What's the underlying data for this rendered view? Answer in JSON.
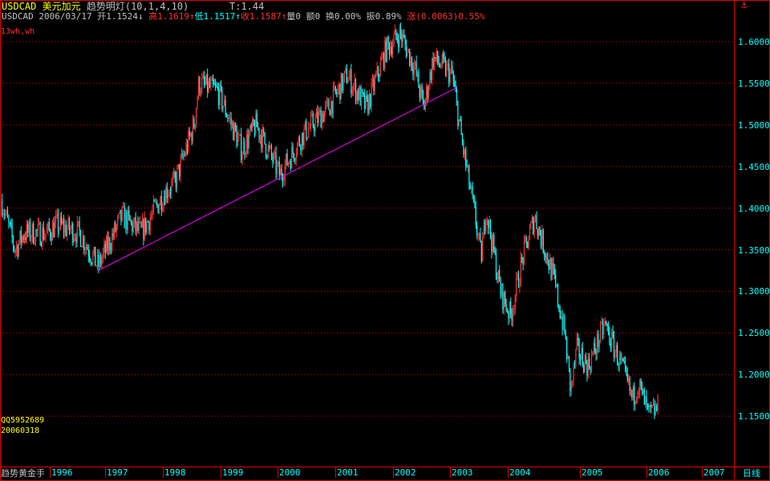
{
  "header": {
    "symbol": "USDCAD",
    "name": "美元加元",
    "indicator": "趋势明灯(10,1,4,10)",
    "t_value": "T:1.44",
    "quote_symbol": "USDCAD",
    "date": "2006/03/17",
    "open_label": "开",
    "open": "1.1524",
    "open_arrow": "↓",
    "high_label": "高",
    "high": "1.1619",
    "high_arrow": "↑",
    "low_label": "低",
    "low": "1.1517",
    "low_arrow": "↑",
    "close_label": "收",
    "close": "1.1587",
    "close_arrow": "↑",
    "volume": "量0",
    "amount": "额0",
    "turnover": "换0.00%",
    "amplitude": "振0.89%",
    "change_label": "涨",
    "change": "(0.0063)0.55%",
    "sub_label": "13wh,wh"
  },
  "watermark": {
    "qq": "QQ5952689",
    "date": "20060318"
  },
  "footer": {
    "brand": "趋势黄金手",
    "period": "日线",
    "corner_icon": "anchor-icon"
  },
  "colors": {
    "up": "#ff3030",
    "down": "#00ffff",
    "grid": "#e00000",
    "trendline": "#ff00ff",
    "label_yellow": "#ffff00"
  },
  "chart_data": {
    "type": "candlestick",
    "y_ticks": [
      "1.6000",
      "1.5500",
      "1.5000",
      "1.4500",
      "1.4000",
      "1.3500",
      "1.3000",
      "1.2500",
      "1.2000",
      "1.1500"
    ],
    "x_ticks": [
      "1996",
      "1997",
      "1998",
      "1999",
      "2000",
      "2001",
      "2002",
      "2003",
      "2004",
      "2005",
      "2006",
      "2007"
    ],
    "ylim": [
      1.12,
      1.62
    ],
    "grid": true,
    "price_path": [
      [
        "1995-02",
        1.41
      ],
      [
        "1995-05",
        1.35
      ],
      [
        "1995-07",
        1.37
      ],
      [
        "1995-12",
        1.37
      ],
      [
        "1996-02",
        1.38
      ],
      [
        "1996-07",
        1.37
      ],
      [
        "1996-11",
        1.33
      ],
      [
        "1997-04",
        1.39
      ],
      [
        "1997-08",
        1.37
      ],
      [
        "1998-01",
        1.42
      ],
      [
        "1998-03",
        1.43
      ],
      [
        "1998-07",
        1.5
      ],
      [
        "1998-08",
        1.55
      ],
      [
        "1998-12",
        1.54
      ],
      [
        "1999-05",
        1.47
      ],
      [
        "1999-08",
        1.5
      ],
      [
        "2000-01",
        1.44
      ],
      [
        "2000-06",
        1.49
      ],
      [
        "2000-11",
        1.52
      ],
      [
        "2001-03",
        1.56
      ],
      [
        "2001-07",
        1.52
      ],
      [
        "2001-11",
        1.59
      ],
      [
        "2002-02",
        1.61
      ],
      [
        "2002-05",
        1.57
      ],
      [
        "2002-07",
        1.52
      ],
      [
        "2002-09",
        1.58
      ],
      [
        "2003-01",
        1.56
      ],
      [
        "2003-03",
        1.48
      ],
      [
        "2003-06",
        1.38
      ],
      [
        "2003-07",
        1.34
      ],
      [
        "2003-08",
        1.4
      ],
      [
        "2003-11",
        1.3
      ],
      [
        "2004-01",
        1.27
      ],
      [
        "2004-03",
        1.34
      ],
      [
        "2004-05",
        1.39
      ],
      [
        "2004-08",
        1.32
      ],
      [
        "2004-10",
        1.25
      ],
      [
        "2004-11",
        1.18
      ],
      [
        "2004-12",
        1.23
      ],
      [
        "2005-02",
        1.21
      ],
      [
        "2005-05",
        1.26
      ],
      [
        "2005-08",
        1.21
      ],
      [
        "2005-10",
        1.17
      ],
      [
        "2005-11",
        1.19
      ],
      [
        "2006-01",
        1.15
      ],
      [
        "2006-03",
        1.16
      ]
    ],
    "trendline": [
      [
        "1996-11",
        1.325
      ],
      [
        "2003-02",
        1.545
      ]
    ]
  }
}
